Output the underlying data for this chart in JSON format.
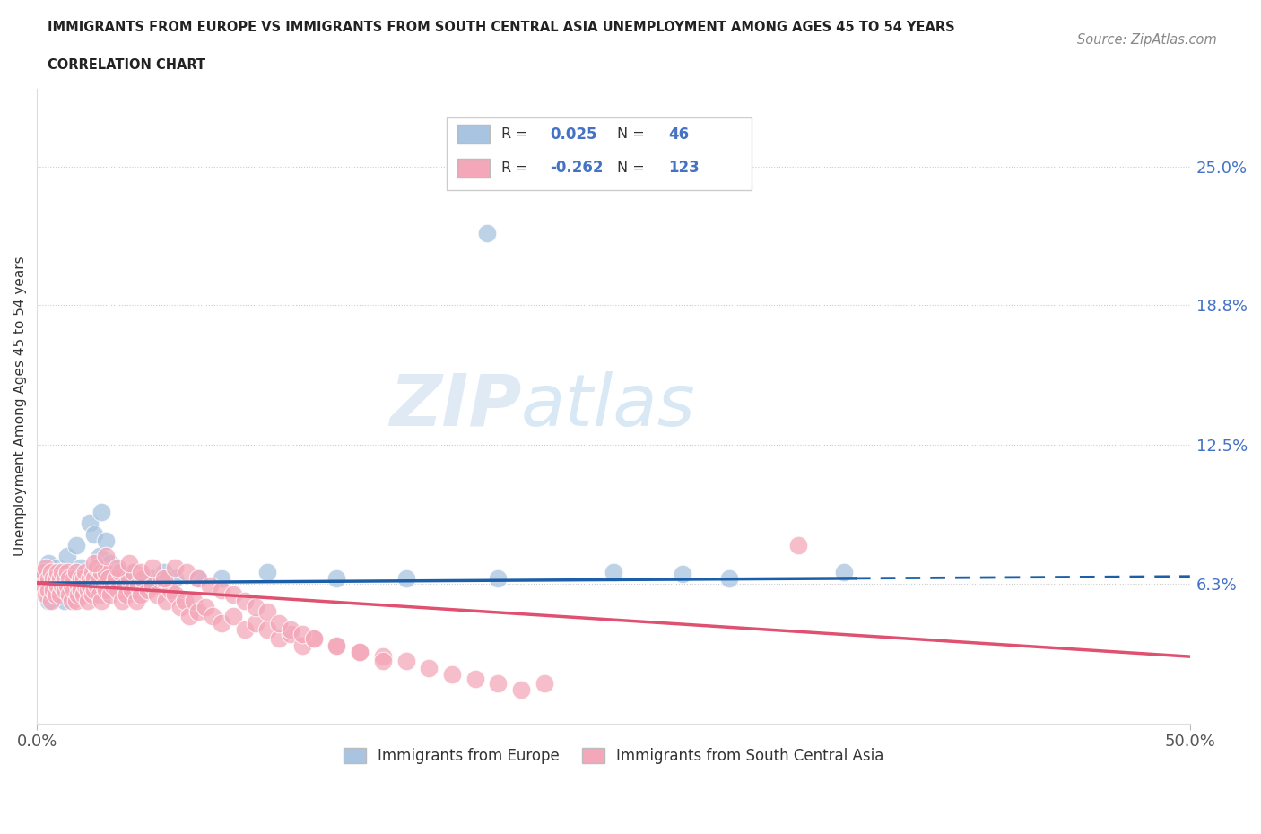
{
  "title_line1": "IMMIGRANTS FROM EUROPE VS IMMIGRANTS FROM SOUTH CENTRAL ASIA UNEMPLOYMENT AMONG AGES 45 TO 54 YEARS",
  "title_line2": "CORRELATION CHART",
  "source": "Source: ZipAtlas.com",
  "ylabel": "Unemployment Among Ages 45 to 54 years",
  "xlim": [
    0.0,
    0.5
  ],
  "ylim": [
    0.0,
    0.285
  ],
  "ytick_positions": [
    0.0625,
    0.125,
    0.188,
    0.25
  ],
  "ytick_labels": [
    "6.3%",
    "12.5%",
    "18.8%",
    "25.0%"
  ],
  "europe_color": "#a8c4e0",
  "sca_color": "#f4a7b9",
  "europe_line_color": "#1a5fa8",
  "sca_line_color": "#e05070",
  "legend_label_europe": "Immigrants from Europe",
  "legend_label_sca": "Immigrants from South Central Asia",
  "europe_scatter": [
    [
      0.003,
      0.065
    ],
    [
      0.004,
      0.068
    ],
    [
      0.005,
      0.055
    ],
    [
      0.005,
      0.072
    ],
    [
      0.006,
      0.06
    ],
    [
      0.007,
      0.058
    ],
    [
      0.008,
      0.065
    ],
    [
      0.009,
      0.07
    ],
    [
      0.01,
      0.062
    ],
    [
      0.011,
      0.068
    ],
    [
      0.012,
      0.055
    ],
    [
      0.013,
      0.075
    ],
    [
      0.014,
      0.06
    ],
    [
      0.015,
      0.058
    ],
    [
      0.016,
      0.065
    ],
    [
      0.017,
      0.08
    ],
    [
      0.018,
      0.062
    ],
    [
      0.019,
      0.07
    ],
    [
      0.02,
      0.065
    ],
    [
      0.022,
      0.06
    ],
    [
      0.023,
      0.09
    ],
    [
      0.025,
      0.085
    ],
    [
      0.027,
      0.075
    ],
    [
      0.028,
      0.095
    ],
    [
      0.03,
      0.082
    ],
    [
      0.032,
      0.072
    ],
    [
      0.035,
      0.068
    ],
    [
      0.038,
      0.065
    ],
    [
      0.04,
      0.06
    ],
    [
      0.042,
      0.068
    ],
    [
      0.045,
      0.065
    ],
    [
      0.048,
      0.062
    ],
    [
      0.05,
      0.065
    ],
    [
      0.055,
      0.068
    ],
    [
      0.06,
      0.065
    ],
    [
      0.07,
      0.065
    ],
    [
      0.08,
      0.065
    ],
    [
      0.1,
      0.068
    ],
    [
      0.13,
      0.065
    ],
    [
      0.16,
      0.065
    ],
    [
      0.2,
      0.065
    ],
    [
      0.25,
      0.068
    ],
    [
      0.3,
      0.065
    ],
    [
      0.35,
      0.068
    ],
    [
      0.28,
      0.067
    ],
    [
      0.195,
      0.22
    ]
  ],
  "sca_scatter": [
    [
      0.002,
      0.065
    ],
    [
      0.003,
      0.068
    ],
    [
      0.003,
      0.062
    ],
    [
      0.004,
      0.07
    ],
    [
      0.004,
      0.058
    ],
    [
      0.005,
      0.065
    ],
    [
      0.005,
      0.06
    ],
    [
      0.006,
      0.068
    ],
    [
      0.006,
      0.055
    ],
    [
      0.007,
      0.065
    ],
    [
      0.007,
      0.06
    ],
    [
      0.008,
      0.065
    ],
    [
      0.008,
      0.058
    ],
    [
      0.009,
      0.062
    ],
    [
      0.009,
      0.068
    ],
    [
      0.01,
      0.065
    ],
    [
      0.01,
      0.058
    ],
    [
      0.011,
      0.062
    ],
    [
      0.011,
      0.068
    ],
    [
      0.012,
      0.06
    ],
    [
      0.012,
      0.065
    ],
    [
      0.013,
      0.062
    ],
    [
      0.013,
      0.068
    ],
    [
      0.014,
      0.058
    ],
    [
      0.014,
      0.065
    ],
    [
      0.015,
      0.062
    ],
    [
      0.015,
      0.055
    ],
    [
      0.016,
      0.065
    ],
    [
      0.016,
      0.06
    ],
    [
      0.017,
      0.068
    ],
    [
      0.017,
      0.055
    ],
    [
      0.018,
      0.062
    ],
    [
      0.018,
      0.058
    ],
    [
      0.019,
      0.065
    ],
    [
      0.019,
      0.06
    ],
    [
      0.02,
      0.065
    ],
    [
      0.02,
      0.058
    ],
    [
      0.021,
      0.062
    ],
    [
      0.021,
      0.068
    ],
    [
      0.022,
      0.06
    ],
    [
      0.022,
      0.055
    ],
    [
      0.023,
      0.065
    ],
    [
      0.023,
      0.062
    ],
    [
      0.024,
      0.068
    ],
    [
      0.024,
      0.058
    ],
    [
      0.025,
      0.065
    ],
    [
      0.025,
      0.06
    ],
    [
      0.026,
      0.062
    ],
    [
      0.026,
      0.07
    ],
    [
      0.027,
      0.065
    ],
    [
      0.027,
      0.058
    ],
    [
      0.028,
      0.068
    ],
    [
      0.028,
      0.055
    ],
    [
      0.029,
      0.062
    ],
    [
      0.03,
      0.068
    ],
    [
      0.03,
      0.06
    ],
    [
      0.031,
      0.065
    ],
    [
      0.032,
      0.058
    ],
    [
      0.033,
      0.062
    ],
    [
      0.034,
      0.065
    ],
    [
      0.035,
      0.06
    ],
    [
      0.036,
      0.068
    ],
    [
      0.037,
      0.055
    ],
    [
      0.038,
      0.062
    ],
    [
      0.039,
      0.058
    ],
    [
      0.04,
      0.065
    ],
    [
      0.041,
      0.06
    ],
    [
      0.042,
      0.068
    ],
    [
      0.043,
      0.055
    ],
    [
      0.044,
      0.062
    ],
    [
      0.045,
      0.058
    ],
    [
      0.046,
      0.065
    ],
    [
      0.048,
      0.06
    ],
    [
      0.05,
      0.062
    ],
    [
      0.052,
      0.058
    ],
    [
      0.054,
      0.065
    ],
    [
      0.056,
      0.055
    ],
    [
      0.058,
      0.06
    ],
    [
      0.06,
      0.058
    ],
    [
      0.062,
      0.052
    ],
    [
      0.064,
      0.055
    ],
    [
      0.066,
      0.048
    ],
    [
      0.068,
      0.055
    ],
    [
      0.07,
      0.05
    ],
    [
      0.073,
      0.052
    ],
    [
      0.076,
      0.048
    ],
    [
      0.08,
      0.045
    ],
    [
      0.085,
      0.048
    ],
    [
      0.09,
      0.042
    ],
    [
      0.095,
      0.045
    ],
    [
      0.1,
      0.042
    ],
    [
      0.105,
      0.038
    ],
    [
      0.11,
      0.04
    ],
    [
      0.115,
      0.035
    ],
    [
      0.12,
      0.038
    ],
    [
      0.13,
      0.035
    ],
    [
      0.14,
      0.032
    ],
    [
      0.15,
      0.03
    ],
    [
      0.16,
      0.028
    ],
    [
      0.17,
      0.025
    ],
    [
      0.18,
      0.022
    ],
    [
      0.19,
      0.02
    ],
    [
      0.2,
      0.018
    ],
    [
      0.21,
      0.015
    ],
    [
      0.22,
      0.018
    ],
    [
      0.025,
      0.072
    ],
    [
      0.03,
      0.075
    ],
    [
      0.035,
      0.07
    ],
    [
      0.04,
      0.072
    ],
    [
      0.045,
      0.068
    ],
    [
      0.05,
      0.07
    ],
    [
      0.055,
      0.065
    ],
    [
      0.06,
      0.07
    ],
    [
      0.065,
      0.068
    ],
    [
      0.07,
      0.065
    ],
    [
      0.075,
      0.062
    ],
    [
      0.08,
      0.06
    ],
    [
      0.085,
      0.058
    ],
    [
      0.09,
      0.055
    ],
    [
      0.095,
      0.052
    ],
    [
      0.1,
      0.05
    ],
    [
      0.105,
      0.045
    ],
    [
      0.11,
      0.042
    ],
    [
      0.115,
      0.04
    ],
    [
      0.12,
      0.038
    ],
    [
      0.13,
      0.035
    ],
    [
      0.14,
      0.032
    ],
    [
      0.15,
      0.028
    ],
    [
      0.33,
      0.08
    ]
  ]
}
